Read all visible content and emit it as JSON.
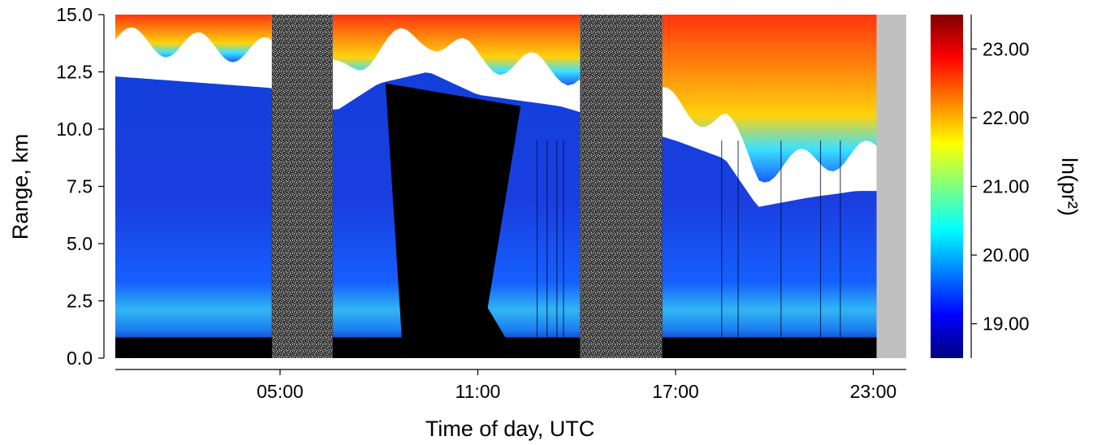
{
  "chart_data": {
    "type": "heatmap",
    "xlabel": "Time of day, UTC",
    "ylabel": "Range, km",
    "colorbar_label": "ln(pr²)",
    "x_unit": "hours UTC",
    "xlim": [
      0,
      24
    ],
    "ylim": [
      0.0,
      15.0
    ],
    "x_ticks": [
      {
        "value": 5,
        "label": "05:00"
      },
      {
        "value": 11,
        "label": "11:00"
      },
      {
        "value": 17,
        "label": "17:00"
      },
      {
        "value": 23,
        "label": "23:00"
      }
    ],
    "y_ticks": [
      {
        "value": 0.0,
        "label": "0.0"
      },
      {
        "value": 2.5,
        "label": "2.5"
      },
      {
        "value": 5.0,
        "label": "5.0"
      },
      {
        "value": 7.5,
        "label": "7.5"
      },
      {
        "value": 10.0,
        "label": "10.0"
      },
      {
        "value": 12.5,
        "label": "12.5"
      },
      {
        "value": 15.0,
        "label": "15.0"
      }
    ],
    "colorbar": {
      "range": [
        18.5,
        23.5
      ],
      "ticks": [
        {
          "value": 19.0,
          "label": "19.00"
        },
        {
          "value": 20.0,
          "label": "20.00"
        },
        {
          "value": 21.0,
          "label": "21.00"
        },
        {
          "value": 22.0,
          "label": "22.00"
        },
        {
          "value": 23.0,
          "label": "23.00"
        }
      ],
      "colormap": [
        "#00007f",
        "#0000ff",
        "#007fff",
        "#00ffff",
        "#7fff7f",
        "#ffff00",
        "#ff7f00",
        "#ff0000",
        "#7f0000"
      ]
    },
    "special_colors": {
      "saturated": "#ffffff",
      "noise": "#9a9a9a",
      "no_data": "#c0c0c0",
      "below_signal": "#000000"
    },
    "regions": [
      {
        "kind": "signal",
        "start": 0.0,
        "end": 4.75
      },
      {
        "kind": "noise",
        "start": 4.75,
        "end": 6.6
      },
      {
        "kind": "signal",
        "start": 6.6,
        "end": 14.1
      },
      {
        "kind": "noise",
        "start": 14.1,
        "end": 16.6
      },
      {
        "kind": "signal",
        "start": 16.6,
        "end": 23.1
      },
      {
        "kind": "no_data",
        "start": 23.1,
        "end": 24.0
      }
    ],
    "saturated_layer_base_km": [
      {
        "x": 0.0,
        "y": 12.3
      },
      {
        "x": 4.7,
        "y": 11.8
      },
      {
        "x": 6.7,
        "y": 10.8
      },
      {
        "x": 8.0,
        "y": 12.0
      },
      {
        "x": 9.5,
        "y": 12.5
      },
      {
        "x": 11.0,
        "y": 11.5
      },
      {
        "x": 13.5,
        "y": 11.0
      },
      {
        "x": 17.0,
        "y": 9.5
      },
      {
        "x": 18.5,
        "y": 8.7
      },
      {
        "x": 19.5,
        "y": 6.6
      },
      {
        "x": 21.0,
        "y": 7.0
      },
      {
        "x": 22.5,
        "y": 7.3
      }
    ]
  }
}
